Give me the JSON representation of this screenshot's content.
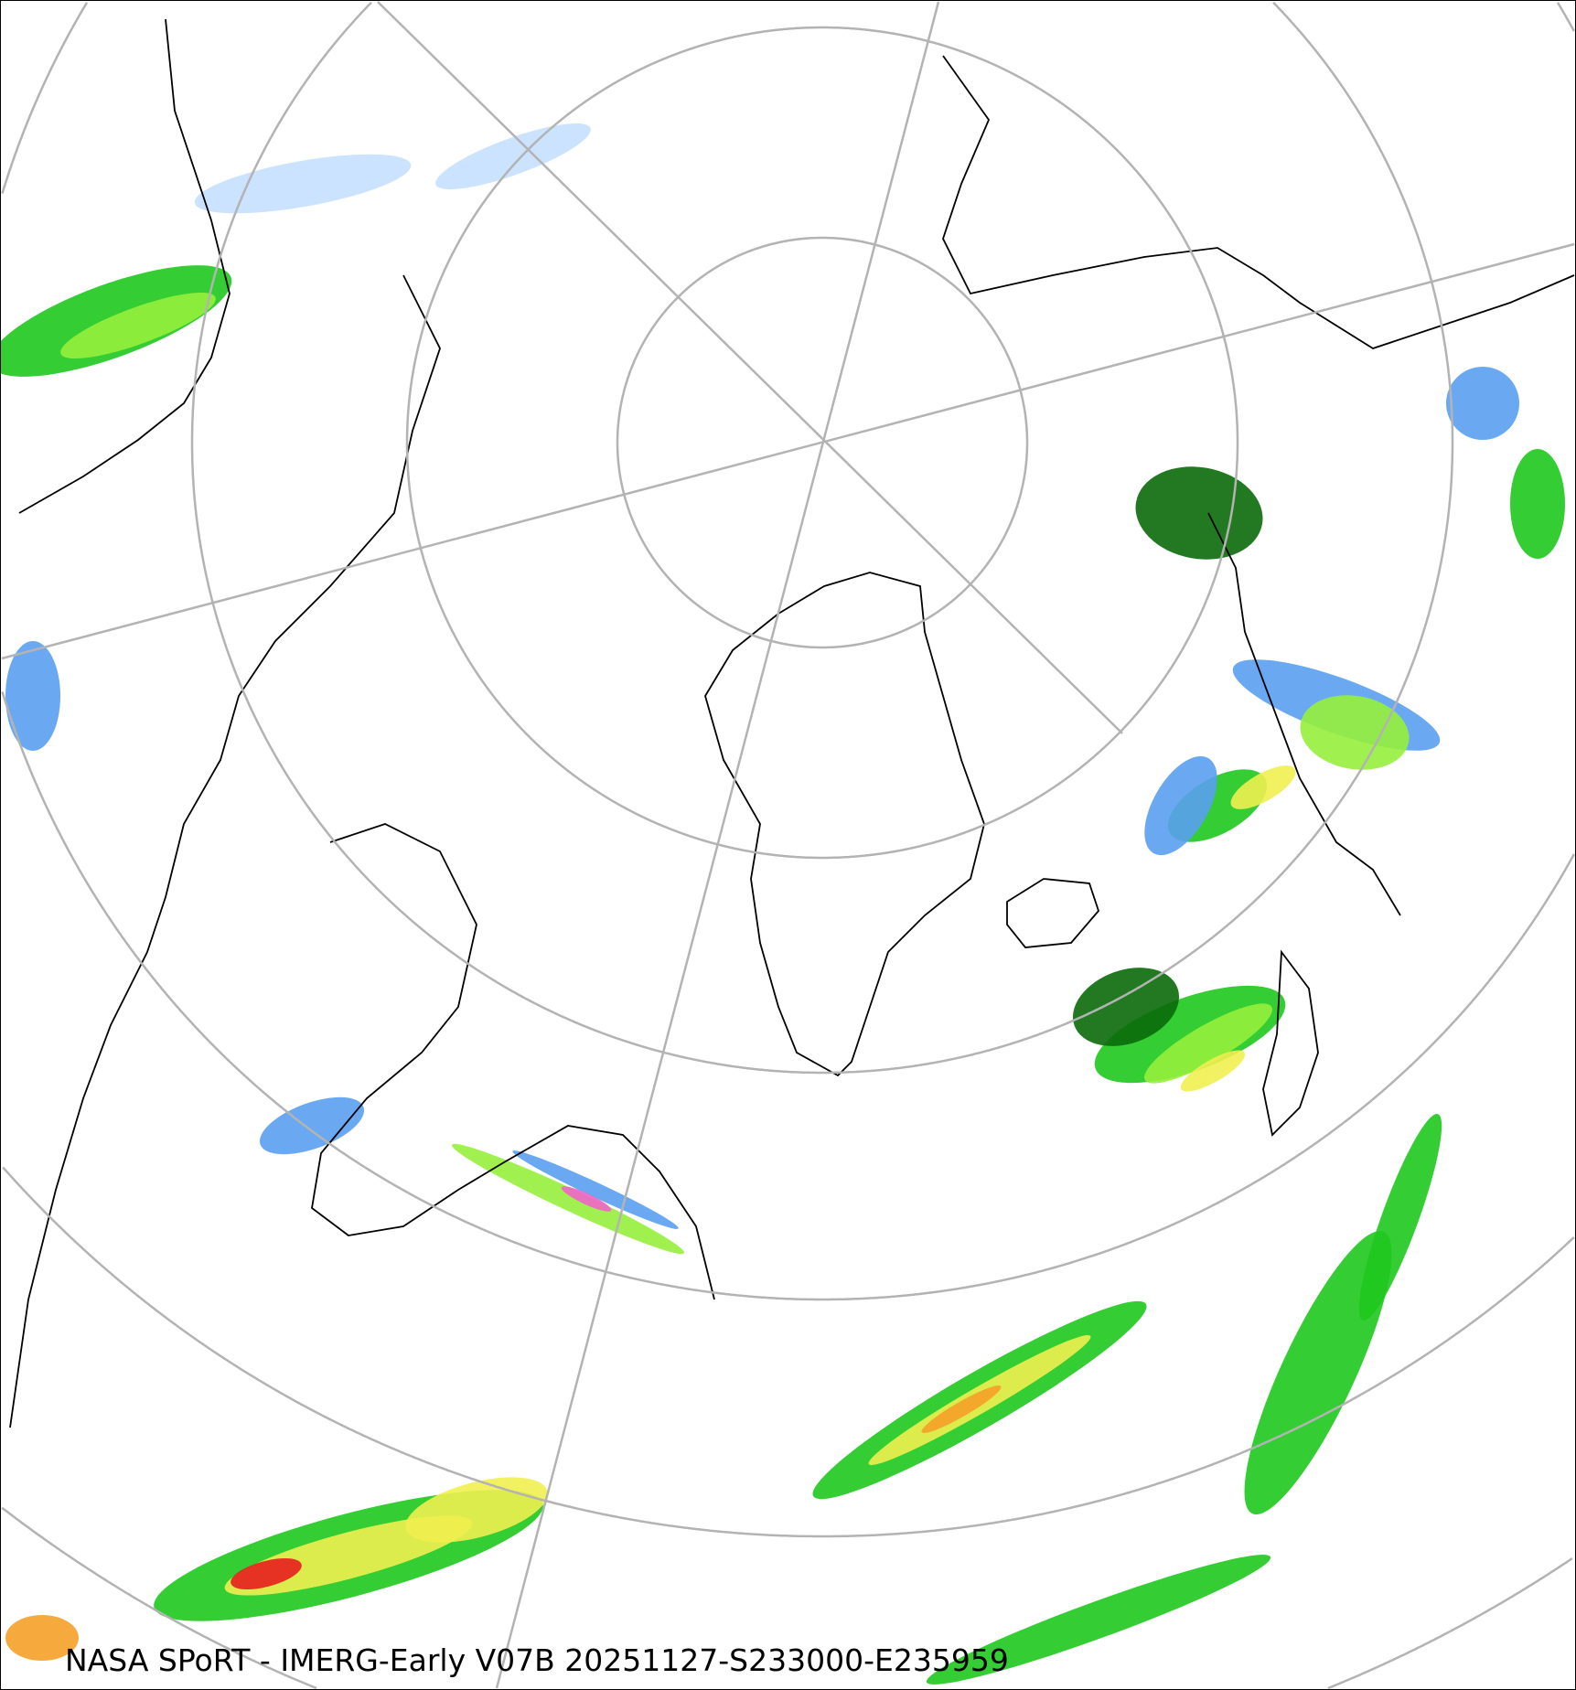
{
  "map": {
    "caption": "NASA SPoRT - IMERG-Early V07B 20251127-S233000-E235959",
    "projection": "north-polar-stereographic",
    "graticule_color": "#b3b3b3",
    "coastline_color": "#000000",
    "precip_colors": {
      "very_light": "#c6e0ff",
      "light": "#5aa0f0",
      "light_blue_dark": "#2060c0",
      "dark_green": "#0a6a0a",
      "green": "#1ec81e",
      "light_green": "#96f03c",
      "yellow": "#f0f050",
      "orange": "#f5a028",
      "red": "#e61e1e",
      "dark_red": "#8c0a0a",
      "pink": "#f064c8"
    }
  }
}
